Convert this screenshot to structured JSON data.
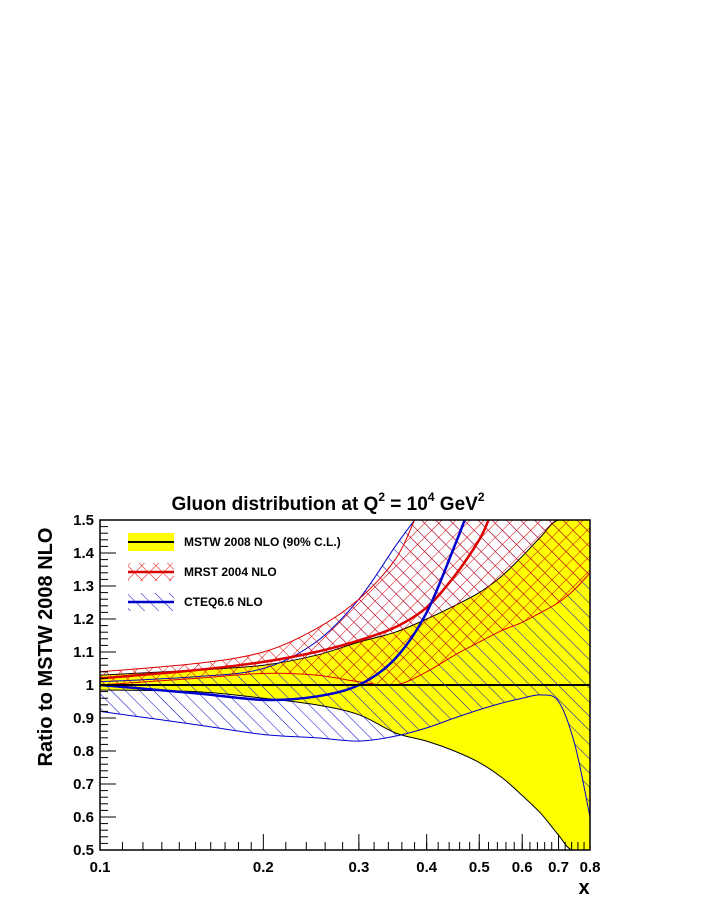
{
  "chart_data": {
    "type": "line",
    "title_main": "Gluon distribution at Q",
    "title_sup1": "2",
    "title_mid": " = 10",
    "title_sup2": "4",
    "title_unit": " GeV",
    "title_sup3": "2",
    "xlabel": "x",
    "ylabel": "Ratio to MSTW 2008 NLO",
    "xscale": "log",
    "xlim": [
      0.1,
      0.8
    ],
    "ylim": [
      0.5,
      1.5
    ],
    "x_ticks": [
      {
        "value": 0.1,
        "label": "0.1"
      },
      {
        "value": 0.2,
        "label": "0.2"
      },
      {
        "value": 0.3,
        "label": "0.3"
      },
      {
        "value": 0.4,
        "label": "0.4"
      },
      {
        "value": 0.5,
        "label": "0.5"
      },
      {
        "value": 0.6,
        "label": "0.6"
      },
      {
        "value": 0.7,
        "label": "0.7"
      },
      {
        "value": 0.8,
        "label": "0.8"
      }
    ],
    "y_ticks": [
      {
        "value": 0.5,
        "label": "0.5"
      },
      {
        "value": 0.6,
        "label": "0.6"
      },
      {
        "value": 0.7,
        "label": "0.7"
      },
      {
        "value": 0.8,
        "label": "0.8"
      },
      {
        "value": 0.9,
        "label": "0.9"
      },
      {
        "value": 1.0,
        "label": "1"
      },
      {
        "value": 1.1,
        "label": "1.1"
      },
      {
        "value": 1.2,
        "label": "1.2"
      },
      {
        "value": 1.3,
        "label": "1.3"
      },
      {
        "value": 1.4,
        "label": "1.4"
      },
      {
        "value": 1.5,
        "label": "1.5"
      }
    ],
    "legend_position": "top-left",
    "series": [
      {
        "name": "MSTW 2008 NLO (90% C.L.)",
        "color": "#000000",
        "band_color": "#ffff00",
        "style": "filled",
        "central": [
          [
            0.1,
            1.0
          ],
          [
            0.8,
            1.0
          ]
        ],
        "upper": [
          [
            0.1,
            1.03
          ],
          [
            0.15,
            1.045
          ],
          [
            0.2,
            1.06
          ],
          [
            0.25,
            1.09
          ],
          [
            0.3,
            1.13
          ],
          [
            0.35,
            1.16
          ],
          [
            0.4,
            1.2
          ],
          [
            0.45,
            1.24
          ],
          [
            0.5,
            1.28
          ],
          [
            0.55,
            1.33
          ],
          [
            0.6,
            1.39
          ],
          [
            0.65,
            1.45
          ],
          [
            0.7,
            1.5
          ],
          [
            0.8,
            1.5
          ]
        ],
        "lower": [
          [
            0.1,
            0.985
          ],
          [
            0.15,
            0.98
          ],
          [
            0.2,
            0.96
          ],
          [
            0.25,
            0.94
          ],
          [
            0.3,
            0.91
          ],
          [
            0.35,
            0.855
          ],
          [
            0.4,
            0.83
          ],
          [
            0.45,
            0.8
          ],
          [
            0.5,
            0.765
          ],
          [
            0.55,
            0.72
          ],
          [
            0.6,
            0.665
          ],
          [
            0.65,
            0.61
          ],
          [
            0.7,
            0.545
          ],
          [
            0.74,
            0.5
          ],
          [
            0.8,
            0.5
          ]
        ]
      },
      {
        "name": "MRST 2004 NLO",
        "color": "#dd0000",
        "band_color": "#dd0000",
        "style": "hatched-cross",
        "central": [
          [
            0.1,
            1.02
          ],
          [
            0.15,
            1.045
          ],
          [
            0.2,
            1.07
          ],
          [
            0.25,
            1.1
          ],
          [
            0.3,
            1.135
          ],
          [
            0.35,
            1.175
          ],
          [
            0.4,
            1.235
          ],
          [
            0.45,
            1.33
          ],
          [
            0.5,
            1.44
          ],
          [
            0.52,
            1.5
          ]
        ],
        "upper": [
          [
            0.1,
            1.04
          ],
          [
            0.15,
            1.065
          ],
          [
            0.2,
            1.1
          ],
          [
            0.25,
            1.17
          ],
          [
            0.3,
            1.26
          ],
          [
            0.35,
            1.38
          ],
          [
            0.38,
            1.5
          ]
        ],
        "lower": [
          [
            0.1,
            1.0
          ],
          [
            0.15,
            1.02
          ],
          [
            0.2,
            1.035
          ],
          [
            0.25,
            1.03
          ],
          [
            0.3,
            1.01
          ],
          [
            0.35,
            1.0
          ],
          [
            0.4,
            1.04
          ],
          [
            0.45,
            1.09
          ],
          [
            0.5,
            1.13
          ],
          [
            0.55,
            1.165
          ],
          [
            0.6,
            1.19
          ],
          [
            0.65,
            1.22
          ],
          [
            0.7,
            1.25
          ],
          [
            0.75,
            1.29
          ],
          [
            0.8,
            1.34
          ]
        ]
      },
      {
        "name": "CTEQ6.6 NLO",
        "color": "#0000cc",
        "band_color": "#0000cc",
        "style": "hatched-diagonal",
        "central": [
          [
            0.1,
            1.0
          ],
          [
            0.15,
            0.975
          ],
          [
            0.2,
            0.955
          ],
          [
            0.25,
            0.965
          ],
          [
            0.3,
            1.0
          ],
          [
            0.35,
            1.08
          ],
          [
            0.4,
            1.22
          ],
          [
            0.45,
            1.42
          ],
          [
            0.47,
            1.5
          ]
        ],
        "upper": [
          [
            0.1,
            1.01
          ],
          [
            0.15,
            1.025
          ],
          [
            0.2,
            1.05
          ],
          [
            0.25,
            1.13
          ],
          [
            0.3,
            1.26
          ],
          [
            0.35,
            1.42
          ],
          [
            0.38,
            1.5
          ]
        ],
        "lower": [
          [
            0.1,
            0.92
          ],
          [
            0.15,
            0.88
          ],
          [
            0.2,
            0.85
          ],
          [
            0.25,
            0.84
          ],
          [
            0.3,
            0.83
          ],
          [
            0.35,
            0.845
          ],
          [
            0.4,
            0.87
          ],
          [
            0.45,
            0.9
          ],
          [
            0.5,
            0.925
          ],
          [
            0.55,
            0.945
          ],
          [
            0.6,
            0.96
          ],
          [
            0.65,
            0.97
          ],
          [
            0.7,
            0.95
          ],
          [
            0.75,
            0.82
          ],
          [
            0.8,
            0.6
          ]
        ]
      }
    ]
  }
}
